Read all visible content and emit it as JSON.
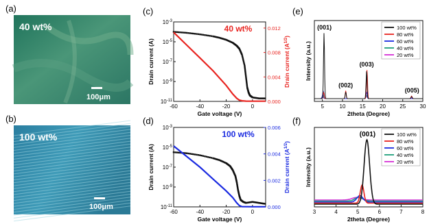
{
  "panel_labels": {
    "a": "(a)",
    "b": "(b)",
    "c": "(c)",
    "d": "(d)",
    "e": "(e)",
    "f": "(f)"
  },
  "micrographs": [
    {
      "label": "40 wt%",
      "scale_bar": "100μm"
    },
    {
      "label": "100 wt%",
      "scale_bar": "100μm"
    }
  ],
  "colors": {
    "black": "#111111",
    "red": "#e8231f",
    "blue": "#1a2ae0",
    "green": "#1e9e7a",
    "magenta": "#d52fd5"
  },
  "chart_data": [
    {
      "id": "c",
      "type": "line",
      "title": "40 wt%",
      "xlabel": "Gate voltage (V)",
      "ylabel": "Drain current (A)",
      "ylabel_right": "Drain current (A^1/2)",
      "xlim": [
        -60,
        10
      ],
      "xticks": [
        -60,
        -40,
        -20,
        0
      ],
      "ylim_log": [
        -11,
        -3
      ],
      "yticks_log": [
        "10^-3",
        "10^-5",
        "10^-7",
        "10^-9",
        "10^-11"
      ],
      "ylim_right": [
        0,
        0.013
      ],
      "yticks_right": [
        "0.000",
        "0.004",
        "0.008",
        "0.012"
      ],
      "series": [
        {
          "axis": "left",
          "color": "black",
          "x": [
            -60,
            -50,
            -40,
            -30,
            -25,
            -20,
            -15,
            -12,
            -10,
            -8,
            -6,
            -5,
            -4,
            -3,
            -2,
            0,
            5,
            10
          ],
          "logy": [
            -4.0,
            -4.1,
            -4.25,
            -4.45,
            -4.6,
            -4.8,
            -5.1,
            -5.4,
            -5.7,
            -6.3,
            -7.4,
            -8.5,
            -9.6,
            -10.1,
            -10.4,
            -10.6,
            -10.7,
            -10.7
          ]
        },
        {
          "axis": "right",
          "color": "red",
          "x": [
            -60,
            -50,
            -40,
            -30,
            -20,
            -15,
            -12,
            -10,
            -8,
            -5,
            0,
            10
          ],
          "y": [
            0.0113,
            0.0092,
            0.0071,
            0.005,
            0.0026,
            0.0012,
            0.0005,
            0.0002,
            0.0001,
            5e-05,
            3e-05,
            3e-05
          ]
        }
      ]
    },
    {
      "id": "d",
      "type": "line",
      "title": "100 wt%",
      "xlabel": "Gate voltage (V)",
      "ylabel": "Drain current (A)",
      "ylabel_right": "Drain current (A^1/2)",
      "xlim": [
        -60,
        10
      ],
      "xticks": [
        -60,
        -40,
        -20,
        0
      ],
      "ylim_log": [
        -11,
        -3
      ],
      "yticks_log": [
        "10^-3",
        "10^-5",
        "10^-7",
        "10^-9",
        "10^-11"
      ],
      "ylim_right": [
        0,
        0.006
      ],
      "yticks_right": [
        "0.000",
        "0.002",
        "0.004",
        "0.006"
      ],
      "series": [
        {
          "axis": "left",
          "color": "black",
          "x": [
            -60,
            -50,
            -40,
            -30,
            -25,
            -20,
            -17,
            -15,
            -13,
            -12,
            -11,
            -10,
            -9,
            -7,
            -5,
            0,
            5,
            10
          ],
          "logy": [
            -5.5,
            -5.6,
            -5.8,
            -6.1,
            -6.3,
            -6.6,
            -6.9,
            -7.3,
            -7.9,
            -8.5,
            -9.3,
            -9.9,
            -10.3,
            -10.5,
            -10.6,
            -10.5,
            -10.6,
            -10.7
          ]
        },
        {
          "axis": "right",
          "color": "blue",
          "x": [
            -60,
            -50,
            -40,
            -30,
            -20,
            -15,
            -12,
            -10,
            -8,
            0,
            10
          ],
          "y": [
            0.0046,
            0.0038,
            0.003,
            0.0021,
            0.0012,
            0.0007,
            0.0003,
            0.0001,
            2e-05,
            1e-05,
            1e-05
          ]
        }
      ]
    },
    {
      "id": "e",
      "type": "line",
      "xlabel": "2theta (Degree)",
      "ylabel": "Intensity (a.u.)",
      "xlim": [
        3,
        30
      ],
      "xticks": [
        5,
        10,
        15,
        20,
        25,
        30
      ],
      "annotations": [
        {
          "text": "(001)",
          "x": 5.5
        },
        {
          "text": "(002)",
          "x": 10.8
        },
        {
          "text": "(003)",
          "x": 16.0
        },
        {
          "text": "(005)",
          "x": 27.3
        }
      ],
      "series": [
        {
          "name": "100 wt%",
          "color": "black",
          "peaks": [
            [
              5.4,
              1.0,
              0.18
            ],
            [
              10.8,
              0.1,
              0.18
            ],
            [
              16.0,
              0.42,
              0.18
            ],
            [
              27.2,
              0.03,
              0.2
            ]
          ]
        },
        {
          "name": "80 wt%",
          "color": "red",
          "peaks": [
            [
              5.3,
              0.1,
              0.18
            ],
            [
              10.8,
              0.12,
              0.18
            ],
            [
              16.1,
              0.44,
              0.18
            ],
            [
              27.2,
              0.04,
              0.2
            ]
          ]
        },
        {
          "name": "60 wt%",
          "color": "blue",
          "peaks": [
            [
              5.2,
              0.12,
              0.2
            ],
            [
              16.0,
              0.1,
              0.2
            ]
          ]
        },
        {
          "name": "40 wt%",
          "color": "green",
          "peaks": [
            [
              5.1,
              0.06,
              0.22
            ],
            [
              16.0,
              0.05,
              0.22
            ]
          ]
        },
        {
          "name": "20 wt%",
          "color": "magenta",
          "peaks": [
            [
              5.0,
              0.03,
              0.25
            ],
            [
              16.0,
              0.03,
              0.25
            ],
            [
              27.2,
              0.02,
              0.25
            ]
          ]
        }
      ]
    },
    {
      "id": "f",
      "type": "line",
      "xlabel": "2theta (Degree)",
      "ylabel": "Intensity (a.u.)",
      "xlim": [
        3,
        8
      ],
      "xticks": [
        3,
        4,
        5,
        6,
        7,
        8
      ],
      "annotations": [
        {
          "text": "(001)",
          "x": 5.45
        }
      ],
      "series": [
        {
          "name": "100 wt%",
          "color": "black",
          "peaks": [
            [
              5.42,
              1.0,
              0.18
            ]
          ]
        },
        {
          "name": "80 wt%",
          "color": "red",
          "peaks": [
            [
              5.2,
              0.28,
              0.12
            ]
          ]
        },
        {
          "name": "60 wt%",
          "color": "blue",
          "peaks": [
            [
              5.1,
              0.1,
              0.2
            ]
          ]
        },
        {
          "name": "40 wt%",
          "color": "green",
          "peaks": [
            [
              5.05,
              0.06,
              0.25
            ]
          ]
        },
        {
          "name": "20 wt%",
          "color": "magenta",
          "peaks": [
            [
              4.95,
              0.04,
              0.3
            ]
          ]
        }
      ]
    }
  ]
}
